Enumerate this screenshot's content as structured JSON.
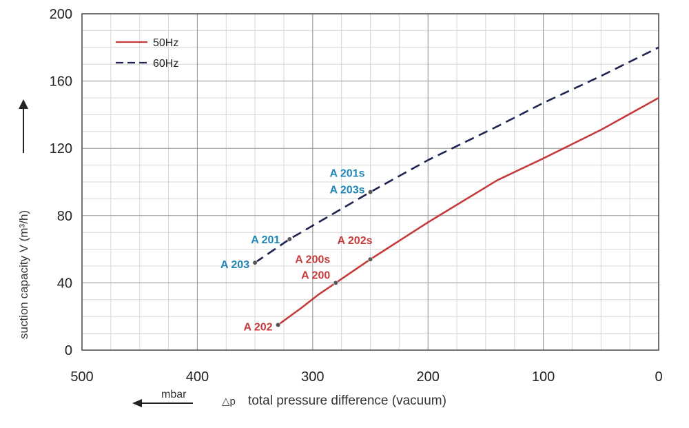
{
  "chart_data": {
    "type": "line",
    "xlabel": "total pressure difference (vacuum)",
    "xlabel_symbol": "△p",
    "x_unit": "mbar",
    "ylabel": "suction capacity V (m³/h)",
    "xlim": [
      500,
      0
    ],
    "ylim": [
      0,
      200
    ],
    "x_ticks": [
      500,
      400,
      300,
      200,
      100,
      0
    ],
    "y_ticks": [
      0,
      40,
      80,
      120,
      160,
      200
    ],
    "grid": true,
    "legend_position": "top-left",
    "colors": {
      "50Hz": "#c53a3a",
      "60Hz": "#1d2452",
      "label_50Hz": "#c53a3a",
      "label_60Hz": "#1f86b5"
    },
    "series": [
      {
        "name": "50Hz",
        "style": "solid",
        "points": [
          [
            330,
            15
          ],
          [
            310,
            25
          ],
          [
            295,
            33
          ],
          [
            280,
            40
          ],
          [
            250,
            54
          ],
          [
            200,
            76
          ],
          [
            140,
            101
          ],
          [
            100,
            114
          ],
          [
            50,
            131
          ],
          [
            0,
            150
          ]
        ]
      },
      {
        "name": "60Hz",
        "style": "dashed",
        "points": [
          [
            350,
            52
          ],
          [
            320,
            66
          ],
          [
            250,
            94
          ],
          [
            200,
            113
          ],
          [
            140,
            133
          ],
          [
            100,
            147
          ],
          [
            50,
            163
          ],
          [
            0,
            180
          ]
        ]
      }
    ],
    "annotations": [
      {
        "series": "60Hz",
        "label": "A 201s",
        "x": 250,
        "y": 94,
        "marker": true
      },
      {
        "series": "60Hz",
        "label": "A 203s",
        "x": 250,
        "y": 94,
        "marker": false
      },
      {
        "series": "60Hz",
        "label": "A 201",
        "x": 320,
        "y": 66,
        "marker": true
      },
      {
        "series": "60Hz",
        "label": "A 203",
        "x": 350,
        "y": 52,
        "marker": true
      },
      {
        "series": "50Hz",
        "label": "A 202s",
        "x": 250,
        "y": 54,
        "marker": true
      },
      {
        "series": "50Hz",
        "label": "A 200s",
        "x": 280,
        "y": 40,
        "marker": false
      },
      {
        "series": "50Hz",
        "label": "A 200",
        "x": 280,
        "y": 40,
        "marker": true
      },
      {
        "series": "50Hz",
        "label": "A 202",
        "x": 330,
        "y": 15,
        "marker": true
      }
    ]
  }
}
